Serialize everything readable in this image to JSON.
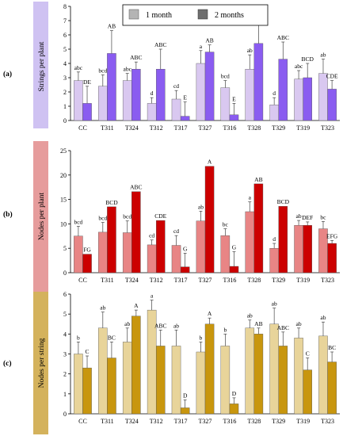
{
  "legend": {
    "items": [
      {
        "label": "1 month",
        "color": "#b4b4b4"
      },
      {
        "label": "2 months",
        "color": "#6e6e6e"
      }
    ]
  },
  "chart_data": [
    {
      "type": "bar",
      "panel_label": "(a)",
      "ylabel": "Strings per plant",
      "ylim": [
        0,
        8
      ],
      "yticks": [
        0,
        1,
        2,
        3,
        4,
        5,
        6,
        7,
        8
      ],
      "categories": [
        "CC",
        "T311",
        "T324",
        "T312",
        "T317",
        "T327",
        "T316",
        "T328",
        "T329",
        "T319",
        "T323"
      ],
      "band_color": "#cfc2f2",
      "series": [
        {
          "name": "1 month",
          "color": "#d9c8f0",
          "values": [
            2.8,
            2.4,
            2.8,
            1.2,
            1.5,
            4.0,
            2.3,
            3.6,
            1.1,
            2.9,
            3.3
          ],
          "errors": [
            0.6,
            0.8,
            0.5,
            0.4,
            0.6,
            0.9,
            0.5,
            1.0,
            0.5,
            0.6,
            1.0
          ],
          "labels": [
            "abc",
            "bcd",
            "abc",
            "d",
            "cd",
            "a",
            "bcd",
            "ab",
            "d",
            "abc",
            "ab"
          ]
        },
        {
          "name": "2 months",
          "color": "#8a5cf0",
          "values": [
            1.2,
            4.7,
            3.6,
            3.6,
            0.3,
            4.8,
            0.4,
            5.4,
            4.3,
            3.0,
            2.2
          ],
          "errors": [
            1.2,
            1.6,
            0.5,
            1.4,
            1.0,
            0.5,
            0.8,
            1.5,
            1.2,
            1.0,
            0.6
          ],
          "labels": [
            "DE",
            "AB",
            "ABC",
            "ABC",
            "E",
            "AB",
            "E",
            "A",
            "ABC",
            "BCD",
            "CDE"
          ]
        }
      ]
    },
    {
      "type": "bar",
      "panel_label": "(b)",
      "ylabel": "Nodes per plant",
      "ylim": [
        0,
        25
      ],
      "yticks": [
        0,
        5,
        10,
        15,
        20,
        25
      ],
      "categories": [
        "CC",
        "T311",
        "T324",
        "T312",
        "T317",
        "T327",
        "T316",
        "T328",
        "T329",
        "T319",
        "T323"
      ],
      "band_color": "#e69c9c",
      "series": [
        {
          "name": "1 month",
          "color": "#e88585",
          "values": [
            7.5,
            8.3,
            8.2,
            5.7,
            5.6,
            10.6,
            7.6,
            12.5,
            5.0,
            9.7,
            9.0
          ],
          "errors": [
            2.0,
            2.0,
            2.4,
            1.0,
            2.0,
            2.0,
            1.4,
            2.0,
            1.0,
            1.0,
            1.5
          ],
          "labels": [
            "bcd",
            "bcd",
            "bcd",
            "cd",
            "cd",
            "ab",
            "bc",
            "a",
            "d",
            "ab",
            "bc"
          ]
        },
        {
          "name": "2 months",
          "color": "#cc0000",
          "values": [
            3.8,
            13.5,
            16.6,
            10.7,
            1.2,
            21.8,
            1.3,
            18.2,
            13.6,
            9.7,
            6.0
          ],
          "errors": [
            0.0,
            0.0,
            0.0,
            0.0,
            2.8,
            0.0,
            3.0,
            0.0,
            0.0,
            0.7,
            0.6
          ],
          "labels": [
            "FG",
            "BCD",
            "ABC",
            "CDE",
            "G",
            "A",
            "G",
            "AB",
            "BCD",
            "DEF",
            "EFG"
          ]
        }
      ]
    },
    {
      "type": "bar",
      "panel_label": "(c)",
      "ylabel": "Nodes per string",
      "ylim": [
        0,
        6
      ],
      "yticks": [
        0,
        1,
        2,
        3,
        4,
        5,
        6
      ],
      "categories": [
        "CC",
        "T311",
        "T324",
        "T312",
        "T317",
        "T327",
        "T316",
        "T328",
        "T329",
        "T319",
        "T323"
      ],
      "band_color": "#d4b25c",
      "series": [
        {
          "name": "1 month",
          "color": "#e8d49a",
          "values": [
            3.0,
            4.3,
            3.6,
            5.2,
            3.4,
            3.1,
            3.4,
            4.3,
            4.5,
            3.8,
            3.9
          ],
          "errors": [
            0.6,
            0.8,
            0.7,
            0.5,
            0.8,
            0.5,
            0.6,
            0.4,
            0.8,
            0.5,
            0.7
          ],
          "labels": [
            "b",
            "ab",
            "ab",
            "a",
            "ab",
            "b",
            "b",
            "ab",
            "ab",
            "ab",
            "ab"
          ]
        },
        {
          "name": "2 months",
          "color": "#c8960e",
          "values": [
            2.3,
            2.8,
            4.9,
            3.4,
            0.3,
            4.5,
            0.5,
            4.0,
            3.4,
            2.2,
            2.6
          ],
          "errors": [
            0.6,
            0.8,
            0.3,
            0.8,
            0.4,
            0.3,
            0.3,
            0.3,
            0.7,
            0.6,
            0.5
          ],
          "labels": [
            "C",
            "BC",
            "A",
            "ABC",
            "D",
            "A",
            "D",
            "AB",
            "ABC",
            "C",
            "BC"
          ]
        }
      ]
    }
  ]
}
